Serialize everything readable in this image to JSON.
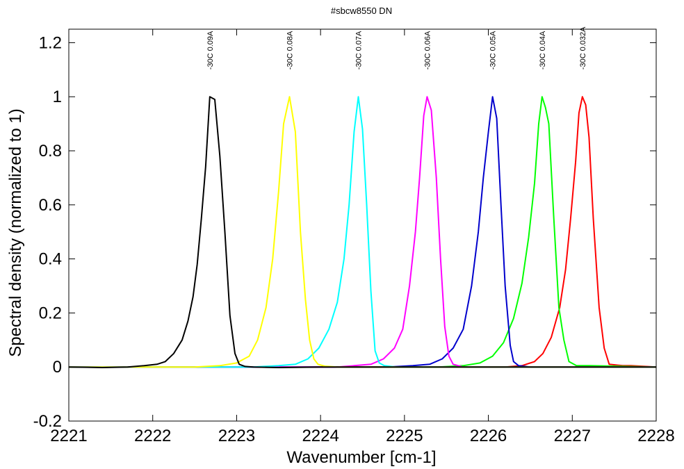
{
  "chart_data": {
    "type": "line",
    "title": "#sbcw8550 DN",
    "xlabel": "Wavenumber [cm-1]",
    "ylabel": "Spectral density (normalized to 1)",
    "xlim": [
      2221,
      2228
    ],
    "ylim": [
      -0.2,
      1.25
    ],
    "xticks": [
      "2221",
      "2222",
      "2223",
      "2224",
      "2225",
      "2226",
      "2227",
      "2228"
    ],
    "yticks": [
      "-0.2",
      "0",
      "0.2",
      "0.4",
      "0.6",
      "0.8",
      "1",
      "1.2"
    ],
    "grid": false,
    "legend": "none",
    "series": [
      {
        "name": "-30C 0.032A",
        "color": "#ff0000",
        "x": [
          2221.0,
          2226.2,
          2226.4,
          2226.55,
          2226.65,
          2226.75,
          2226.85,
          2226.92,
          2226.98,
          2227.04,
          2227.08,
          2227.12,
          2227.16,
          2227.2,
          2227.25,
          2227.32,
          2227.38,
          2227.44,
          2227.6,
          2227.7,
          2228.0
        ],
        "y": [
          0.0,
          0.0,
          0.005,
          0.02,
          0.05,
          0.11,
          0.22,
          0.36,
          0.55,
          0.76,
          0.94,
          1.0,
          0.97,
          0.85,
          0.55,
          0.22,
          0.07,
          0.01,
          0.005,
          0.005,
          0.0
        ]
      },
      {
        "name": "-30C 0.04A",
        "color": "#00ff00",
        "x": [
          2221.0,
          2225.4,
          2225.7,
          2225.9,
          2226.05,
          2226.18,
          2226.3,
          2226.4,
          2226.48,
          2226.55,
          2226.6,
          2226.64,
          2226.68,
          2226.72,
          2226.78,
          2226.84,
          2226.9,
          2226.96,
          2227.05,
          2227.2,
          2228.0
        ],
        "y": [
          0.0,
          0.0,
          0.005,
          0.015,
          0.04,
          0.09,
          0.18,
          0.31,
          0.48,
          0.68,
          0.9,
          1.0,
          0.96,
          0.9,
          0.55,
          0.22,
          0.1,
          0.02,
          0.005,
          0.005,
          0.0
        ]
      },
      {
        "name": "-30C 0.05A",
        "color": "#0000cc",
        "x": [
          2221.0,
          2224.8,
          2225.1,
          2225.3,
          2225.45,
          2225.58,
          2225.7,
          2225.8,
          2225.88,
          2225.94,
          2226.0,
          2226.05,
          2226.1,
          2226.15,
          2226.2,
          2226.26,
          2226.3,
          2226.36,
          2226.5,
          2228.0
        ],
        "y": [
          0.0,
          0.0,
          0.005,
          0.01,
          0.03,
          0.07,
          0.14,
          0.3,
          0.5,
          0.7,
          0.87,
          1.0,
          0.92,
          0.6,
          0.3,
          0.08,
          0.02,
          0.005,
          0.0,
          0.0
        ]
      },
      {
        "name": "-30C 0.06A",
        "color": "#ff00ff",
        "x": [
          2221.0,
          2224.2,
          2224.4,
          2224.6,
          2224.75,
          2224.88,
          2224.98,
          2225.06,
          2225.13,
          2225.18,
          2225.23,
          2225.27,
          2225.32,
          2225.38,
          2225.43,
          2225.48,
          2225.53,
          2225.58,
          2225.7,
          2228.0
        ],
        "y": [
          0.0,
          0.0,
          0.005,
          0.01,
          0.03,
          0.07,
          0.14,
          0.3,
          0.5,
          0.7,
          0.93,
          1.0,
          0.95,
          0.7,
          0.4,
          0.15,
          0.04,
          0.01,
          0.0,
          0.0
        ]
      },
      {
        "name": "-30C 0.07A",
        "color": "#00ffff",
        "x": [
          2221.0,
          2223.2,
          2223.5,
          2223.7,
          2223.85,
          2223.98,
          2224.1,
          2224.2,
          2224.28,
          2224.34,
          2224.4,
          2224.45,
          2224.5,
          2224.55,
          2224.6,
          2224.65,
          2224.7,
          2224.76,
          2224.9,
          2228.0
        ],
        "y": [
          0.0,
          0.0,
          0.005,
          0.01,
          0.03,
          0.07,
          0.14,
          0.24,
          0.4,
          0.6,
          0.87,
          1.0,
          0.88,
          0.6,
          0.28,
          0.06,
          0.015,
          0.005,
          0.0,
          0.0
        ]
      },
      {
        "name": "-30C 0.08A",
        "color": "#ffff00",
        "x": [
          2221.0,
          2222.5,
          2222.8,
          2223.0,
          2223.15,
          2223.25,
          2223.35,
          2223.43,
          2223.5,
          2223.56,
          2223.63,
          2223.7,
          2223.76,
          2223.82,
          2223.87,
          2223.92,
          2223.97,
          2224.05,
          2224.2,
          2228.0
        ],
        "y": [
          0.0,
          0.0,
          0.005,
          0.015,
          0.04,
          0.1,
          0.22,
          0.4,
          0.65,
          0.9,
          1.0,
          0.87,
          0.5,
          0.25,
          0.1,
          0.03,
          0.01,
          0.003,
          0.0,
          0.0
        ]
      },
      {
        "name": "-30C 0.09A",
        "color": "#000000",
        "x": [
          2221.0,
          2221.4,
          2221.7,
          2221.9,
          2222.05,
          2222.15,
          2222.25,
          2222.35,
          2222.42,
          2222.48,
          2222.53,
          2222.58,
          2222.63,
          2222.68,
          2222.74,
          2222.8,
          2222.86,
          2222.92,
          2222.98,
          2223.03,
          2223.1,
          2223.2,
          2223.5,
          2224.0,
          2228.0
        ],
        "y": [
          0.0,
          -0.002,
          0.0,
          0.005,
          0.01,
          0.02,
          0.05,
          0.1,
          0.17,
          0.26,
          0.38,
          0.55,
          0.74,
          1.0,
          0.99,
          0.78,
          0.5,
          0.19,
          0.05,
          0.01,
          0.002,
          0.0,
          -0.002,
          0.0,
          0.0
        ]
      }
    ]
  }
}
